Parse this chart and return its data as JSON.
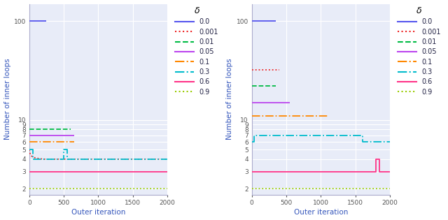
{
  "xlabel": "Outer iteration",
  "ylabel": "Number of inner loops",
  "xlim": [
    0,
    2000
  ],
  "background_color": "#e8ecf8",
  "grid_color": "#ffffff",
  "delta_labels": [
    "0.0",
    "0.001",
    "0.01",
    "0.05",
    "0.1",
    "0.3",
    "0.6",
    "0.9"
  ],
  "colors": [
    "#5555ee",
    "#ee2222",
    "#00bb44",
    "#bb44ee",
    "#ff8800",
    "#00bbcc",
    "#ff3388",
    "#99cc00"
  ],
  "linestyles": [
    "-",
    ":",
    "--",
    "-",
    "-.",
    "-.",
    "-",
    ":"
  ],
  "left": {
    "series": [
      {
        "x": [
          0,
          250
        ],
        "y": [
          100,
          100
        ]
      },
      {
        "x": [
          0,
          5,
          10,
          20,
          50,
          100,
          200,
          400,
          600,
          800,
          1000,
          1500,
          2000
        ],
        "y": [
          5,
          4.8,
          4.6,
          4.4,
          4.2,
          4.1,
          4.0,
          4.0,
          4.0,
          4.0,
          4.0,
          4.0,
          4.0
        ]
      },
      {
        "x": [
          0,
          600
        ],
        "y": [
          8,
          8
        ]
      },
      {
        "x": [
          0,
          650
        ],
        "y": [
          7,
          7
        ]
      },
      {
        "x": [
          0,
          650
        ],
        "y": [
          6,
          6
        ]
      },
      {
        "x": [
          0,
          50,
          50,
          100,
          100,
          200,
          200,
          500,
          500,
          550,
          550,
          600,
          600,
          700,
          700,
          800,
          800,
          1000,
          1000,
          1200,
          1200,
          1500,
          1500,
          1700,
          1700,
          2000
        ],
        "y": [
          5,
          5,
          4,
          4,
          4,
          4,
          4,
          4,
          5,
          5,
          4,
          4,
          4,
          4,
          4,
          4,
          4,
          4,
          4,
          4,
          4,
          4,
          4,
          4,
          4,
          4
        ]
      },
      {
        "x": [
          0,
          2000
        ],
        "y": [
          3,
          3
        ]
      },
      {
        "x": [
          0,
          2000
        ],
        "y": [
          2,
          2
        ]
      }
    ]
  },
  "right": {
    "series": [
      {
        "x": [
          0,
          350
        ],
        "y": [
          100,
          100
        ]
      },
      {
        "x": [
          0,
          10,
          50,
          100,
          200,
          300,
          400
        ],
        "y": [
          32,
          32,
          32,
          32,
          32,
          32,
          32
        ]
      },
      {
        "x": [
          0,
          50,
          100,
          200,
          350
        ],
        "y": [
          22,
          22,
          22,
          22,
          22
        ]
      },
      {
        "x": [
          0,
          50,
          100,
          200,
          400,
          550
        ],
        "y": [
          15,
          15,
          15,
          15,
          15,
          15
        ]
      },
      {
        "x": [
          0,
          50,
          100,
          200,
          400,
          600,
          800,
          1000,
          1100
        ],
        "y": [
          11,
          11,
          11,
          11,
          11,
          11,
          11,
          11,
          11
        ]
      },
      {
        "x": [
          0,
          30,
          30,
          50,
          50,
          100,
          200,
          400,
          600,
          800,
          1000,
          1200,
          1400,
          1600,
          1600,
          1700,
          1700,
          2000
        ],
        "y": [
          6,
          6,
          7,
          7,
          7,
          7,
          7,
          7,
          7,
          7,
          7,
          7,
          7,
          7,
          6,
          6,
          6,
          6
        ]
      },
      {
        "x": [
          0,
          1800,
          1800,
          1850,
          1850,
          2000
        ],
        "y": [
          3,
          3,
          4,
          4,
          3,
          3
        ]
      },
      {
        "x": [
          0,
          2000
        ],
        "y": [
          2,
          2
        ]
      }
    ]
  },
  "yticks": [
    2,
    3,
    4,
    5,
    6,
    7,
    8,
    9,
    10,
    100
  ],
  "ytick_labels": [
    "2",
    "3",
    "4",
    "5",
    "6",
    "7",
    "8",
    "9",
    "10",
    "100"
  ]
}
